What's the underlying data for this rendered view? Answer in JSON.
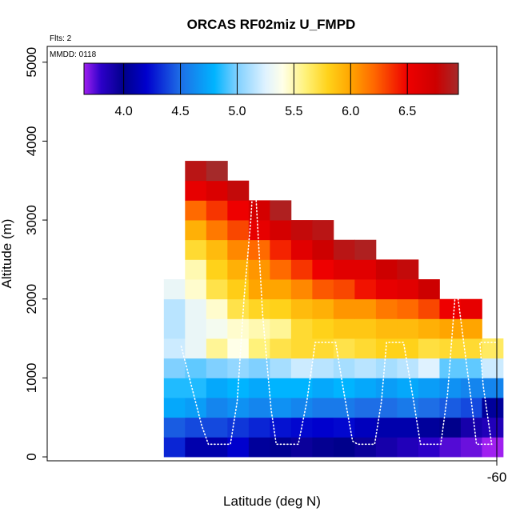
{
  "chart_data": {
    "type": "heatmap",
    "title": "ORCAS RF02miz U_FMPD",
    "xlabel": "Latitude (deg N)",
    "ylabel": "Altitude (m)",
    "flights_note": "Flts: 2",
    "date_note": "MMDD: 0118",
    "xlim": [
      -62.65,
      -60.0
    ],
    "ylim": [
      -50,
      5200
    ],
    "x_ticks": [
      {
        "value": -60,
        "label": "-60"
      }
    ],
    "y_ticks": [
      {
        "value": 0,
        "label": "0"
      },
      {
        "value": 1000,
        "label": "1000"
      },
      {
        "value": 2000,
        "label": "2000"
      },
      {
        "value": 3000,
        "label": "3000"
      },
      {
        "value": 4000,
        "label": "4000"
      },
      {
        "value": 5000,
        "label": "5000"
      }
    ],
    "colorbar": {
      "range": [
        3.65,
        6.95
      ],
      "ticks": [
        {
          "value": 4.0,
          "label": "4.0"
        },
        {
          "value": 4.5,
          "label": "4.5"
        },
        {
          "value": 5.0,
          "label": "5.0"
        },
        {
          "value": 5.5,
          "label": "5.5"
        },
        {
          "value": 6.0,
          "label": "6.0"
        },
        {
          "value": 6.5,
          "label": "6.5"
        }
      ],
      "stops": [
        {
          "value": 3.65,
          "color": "#a020f0"
        },
        {
          "value": 3.8,
          "color": "#2c00c8"
        },
        {
          "value": 4.0,
          "color": "#00008b"
        },
        {
          "value": 4.2,
          "color": "#0000cd"
        },
        {
          "value": 4.5,
          "color": "#1e6ee6"
        },
        {
          "value": 4.8,
          "color": "#00b4ff"
        },
        {
          "value": 5.0,
          "color": "#80d0ff"
        },
        {
          "value": 5.25,
          "color": "#dff2ff"
        },
        {
          "value": 5.4,
          "color": "#ffffe8"
        },
        {
          "value": 5.6,
          "color": "#fff27a"
        },
        {
          "value": 5.8,
          "color": "#ffd21a"
        },
        {
          "value": 6.0,
          "color": "#ffa500"
        },
        {
          "value": 6.2,
          "color": "#ff6a00"
        },
        {
          "value": 6.5,
          "color": "#ee0000"
        },
        {
          "value": 6.75,
          "color": "#cd0000"
        },
        {
          "value": 6.95,
          "color": "#a52a2a"
        }
      ]
    },
    "grid": {
      "x_bins": [
        -61.9,
        -61.775,
        -61.65,
        -61.525,
        -61.4,
        -61.275,
        -61.15,
        -61.025,
        -60.9,
        -60.775,
        -60.65,
        -60.525,
        -60.4,
        -60.275,
        -60.15,
        -60.025
      ],
      "dx": 0.125,
      "dy": 250,
      "y_bins": [
        125,
        375,
        625,
        875,
        1125,
        1375,
        1625,
        1875,
        2125,
        2375,
        2625,
        2875,
        3125,
        3375,
        3625
      ],
      "values": [
        [
          4.3,
          4.1,
          4.1,
          4.2,
          4.05,
          4.02,
          3.95,
          3.98,
          4.0,
          3.95,
          3.9,
          3.85,
          3.8,
          3.75,
          3.72,
          3.65
        ],
        [
          4.45,
          4.4,
          4.4,
          4.35,
          4.3,
          4.25,
          4.22,
          4.2,
          4.22,
          4.15,
          4.1,
          4.1,
          4.05,
          4.0,
          3.9,
          3.85
        ],
        [
          4.75,
          4.7,
          4.6,
          4.65,
          4.6,
          4.65,
          4.6,
          4.55,
          4.55,
          4.5,
          4.5,
          4.55,
          4.5,
          4.45,
          4.4,
          4.05
        ],
        [
          4.85,
          4.85,
          4.75,
          4.8,
          4.75,
          4.8,
          4.8,
          4.75,
          4.8,
          4.75,
          4.7,
          4.75,
          4.7,
          4.65,
          4.6,
          4.6
        ],
        [
          5.0,
          4.95,
          5.0,
          5.05,
          5.0,
          5.1,
          5.2,
          5.15,
          5.1,
          5.15,
          5.1,
          5.15,
          5.25,
          4.95,
          4.95,
          5.2
        ],
        [
          5.2,
          5.3,
          5.55,
          5.4,
          5.6,
          5.7,
          5.75,
          5.75,
          5.7,
          5.75,
          5.8,
          5.8,
          5.72,
          5.75,
          5.75,
          5.65
        ],
        [
          5.15,
          5.3,
          5.35,
          5.45,
          5.5,
          5.55,
          5.75,
          5.8,
          5.85,
          5.85,
          5.9,
          5.9,
          5.95,
          6.0,
          6.0,
          null
        ],
        [
          5.15,
          5.3,
          5.45,
          5.7,
          5.78,
          5.8,
          5.9,
          5.95,
          6.05,
          6.05,
          6.15,
          6.2,
          6.3,
          6.5,
          6.55,
          null
        ],
        [
          5.3,
          5.45,
          5.7,
          5.82,
          6.0,
          6.0,
          6.1,
          6.25,
          6.3,
          6.45,
          6.55,
          6.6,
          6.75,
          null,
          null,
          null
        ],
        [
          null,
          5.5,
          5.8,
          5.95,
          6.05,
          6.2,
          6.35,
          6.5,
          6.6,
          6.6,
          6.75,
          6.8,
          null,
          null,
          null,
          null
        ],
        [
          null,
          5.75,
          5.9,
          6.1,
          6.2,
          6.4,
          6.6,
          6.75,
          6.85,
          6.9,
          null,
          null,
          null,
          null,
          null,
          null
        ],
        [
          null,
          5.95,
          6.15,
          6.3,
          6.55,
          6.7,
          6.8,
          6.85,
          null,
          null,
          null,
          null,
          null,
          null,
          null,
          null
        ],
        [
          null,
          6.2,
          6.35,
          6.5,
          6.7,
          6.9,
          null,
          null,
          null,
          null,
          null,
          null,
          null,
          null,
          null,
          null
        ],
        [
          null,
          6.55,
          6.65,
          6.8,
          null,
          null,
          null,
          null,
          null,
          null,
          null,
          null,
          null,
          null,
          null,
          null
        ],
        [
          null,
          6.85,
          6.95,
          null,
          null,
          null,
          null,
          null,
          null,
          null,
          null,
          null,
          null,
          null,
          null,
          null
        ]
      ]
    },
    "flight_track": [
      {
        "lat": -61.86,
        "alt": 1400
      },
      {
        "lat": -61.8,
        "alt": 900
      },
      {
        "lat": -61.74,
        "alt": 400
      },
      {
        "lat": -61.7,
        "alt": 160
      },
      {
        "lat": -61.57,
        "alt": 160
      },
      {
        "lat": -61.53,
        "alt": 700
      },
      {
        "lat": -61.49,
        "alt": 2000
      },
      {
        "lat": -61.45,
        "alt": 3000
      },
      {
        "lat": -61.43,
        "alt": 3700
      },
      {
        "lat": -61.38,
        "alt": 1800
      },
      {
        "lat": -61.33,
        "alt": 600
      },
      {
        "lat": -61.3,
        "alt": 160
      },
      {
        "lat": -61.17,
        "alt": 160
      },
      {
        "lat": -61.12,
        "alt": 700
      },
      {
        "lat": -61.07,
        "alt": 1450
      },
      {
        "lat": -60.95,
        "alt": 1450
      },
      {
        "lat": -60.9,
        "alt": 800
      },
      {
        "lat": -60.85,
        "alt": 200
      },
      {
        "lat": -60.82,
        "alt": 160
      },
      {
        "lat": -60.72,
        "alt": 160
      },
      {
        "lat": -60.68,
        "alt": 700
      },
      {
        "lat": -60.65,
        "alt": 1450
      },
      {
        "lat": -60.55,
        "alt": 1450
      },
      {
        "lat": -60.49,
        "alt": 700
      },
      {
        "lat": -60.45,
        "alt": 160
      },
      {
        "lat": -60.33,
        "alt": 160
      },
      {
        "lat": -60.29,
        "alt": 800
      },
      {
        "lat": -60.24,
        "alt": 2200
      },
      {
        "lat": -60.18,
        "alt": 1200
      },
      {
        "lat": -60.15,
        "alt": 700
      },
      {
        "lat": -60.12,
        "alt": 160
      },
      {
        "lat": -60.03,
        "alt": 160
      },
      {
        "lat": -60.08,
        "alt": 900
      },
      {
        "lat": -60.1,
        "alt": 1450
      },
      {
        "lat": -60.0,
        "alt": 1450
      }
    ]
  }
}
